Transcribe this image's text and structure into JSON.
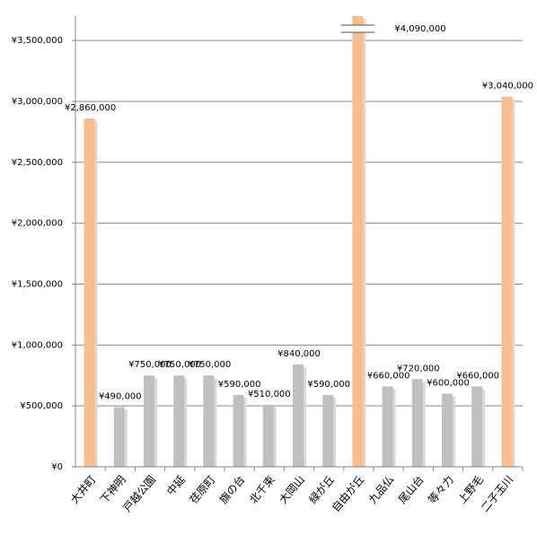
{
  "chart_data": {
    "type": "bar",
    "categories": [
      "大井町",
      "下神明",
      "戸越公園",
      "中延",
      "荏原町",
      "旗の台",
      "北千束",
      "大岡山",
      "緑が丘",
      "自由が丘",
      "九品仏",
      "尾山台",
      "等々力",
      "上野毛",
      "二子玉川"
    ],
    "values": [
      2860000,
      490000,
      750000,
      750000,
      750000,
      590000,
      510000,
      840000,
      590000,
      4090000,
      660000,
      720000,
      600000,
      660000,
      3040000
    ],
    "value_labels": [
      "¥2,860,000",
      "¥490,000",
      "¥750,000",
      "¥750,000",
      "¥750,000",
      "¥590,000",
      "¥510,000",
      "¥840,000",
      "¥590,000",
      "¥4,090,000",
      "¥660,000",
      "¥720,000",
      "¥600,000",
      "¥660,000",
      "¥3,040,000"
    ],
    "colors": [
      "#f9be8c",
      "#bfbfbf",
      "#bfbfbf",
      "#bfbfbf",
      "#bfbfbf",
      "#bfbfbf",
      "#bfbfbf",
      "#bfbfbf",
      "#bfbfbf",
      "#f9be8c",
      "#bfbfbf",
      "#bfbfbf",
      "#bfbfbf",
      "#bfbfbf",
      "#f9be8c"
    ],
    "ylim": [
      0,
      3700000
    ],
    "yticks": [
      {
        "value": 0,
        "label": "¥0"
      },
      {
        "value": 500000,
        "label": "¥500,000"
      },
      {
        "value": 1000000,
        "label": "¥1,000,000"
      },
      {
        "value": 1500000,
        "label": "¥1,500,000"
      },
      {
        "value": 2000000,
        "label": "¥2,000,000"
      },
      {
        "value": 2500000,
        "label": "¥2,500,000"
      },
      {
        "value": 3000000,
        "label": "¥3,000,000"
      },
      {
        "value": 3500000,
        "label": "¥3,500,000"
      }
    ],
    "grid": true
  }
}
